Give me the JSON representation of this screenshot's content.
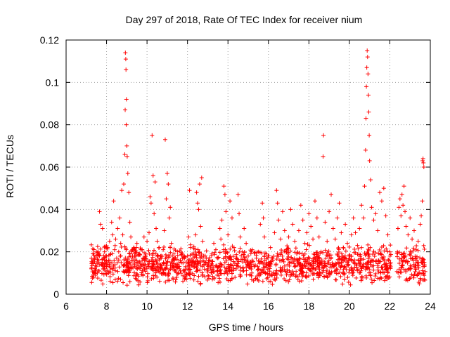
{
  "chart_data": {
    "type": "scatter",
    "title": "Day 297 of 2018, Rate Of TEC Index for receiver nium",
    "xlabel": "GPS time / hours",
    "ylabel": "ROTI / TECUs",
    "xlim": [
      6,
      24
    ],
    "ylim": [
      0,
      0.12
    ],
    "xticks": [
      6,
      8,
      10,
      12,
      14,
      16,
      18,
      20,
      22,
      24
    ],
    "xtick_labels": [
      "6",
      "8",
      "10",
      "12",
      "14",
      "16",
      "18",
      "20",
      "22",
      "24"
    ],
    "yticks": [
      0,
      0.02,
      0.04,
      0.06,
      0.08,
      0.1,
      0.12
    ],
    "ytick_labels": [
      "0",
      "0.02",
      "0.04",
      "0.06",
      "0.08",
      "0.1",
      "0.12"
    ],
    "grid": true,
    "marker": "+",
    "color": "#ff0000",
    "series": [
      {
        "name": "ROTI",
        "points": [
          [
            7.25,
            0.012
          ],
          [
            7.3,
            0.015
          ],
          [
            7.35,
            0.009
          ],
          [
            7.4,
            0.017
          ],
          [
            7.45,
            0.011
          ],
          [
            7.5,
            0.013
          ],
          [
            7.55,
            0.01
          ],
          [
            7.6,
            0.016
          ],
          [
            7.65,
            0.039
          ],
          [
            7.7,
            0.033
          ],
          [
            7.75,
            0.014
          ],
          [
            7.8,
            0.031
          ],
          [
            7.85,
            0.012
          ],
          [
            7.9,
            0.02
          ],
          [
            7.95,
            0.018
          ],
          [
            8.0,
            0.013
          ],
          [
            8.05,
            0.022
          ],
          [
            8.1,
            0.016
          ],
          [
            8.15,
            0.025
          ],
          [
            8.2,
            0.019
          ],
          [
            8.25,
            0.034
          ],
          [
            8.3,
            0.028
          ],
          [
            8.35,
            0.044
          ],
          [
            8.4,
            0.021
          ],
          [
            8.45,
            0.026
          ],
          [
            8.5,
            0.017
          ],
          [
            8.55,
            0.031
          ],
          [
            8.6,
            0.02
          ],
          [
            8.65,
            0.036
          ],
          [
            8.7,
            0.024
          ],
          [
            8.75,
            0.049
          ],
          [
            8.8,
            0.028
          ],
          [
            8.85,
            0.052
          ],
          [
            8.9,
            0.066
          ],
          [
            8.92,
            0.087
          ],
          [
            8.93,
            0.114
          ],
          [
            8.95,
            0.111
          ],
          [
            8.96,
            0.106
          ],
          [
            8.97,
            0.08
          ],
          [
            8.98,
            0.092
          ],
          [
            9.0,
            0.07
          ],
          [
            9.02,
            0.065
          ],
          [
            9.05,
            0.057
          ],
          [
            9.1,
            0.048
          ],
          [
            9.15,
            0.034
          ],
          [
            9.2,
            0.027
          ],
          [
            9.25,
            0.02
          ],
          [
            9.3,
            0.016
          ],
          [
            9.35,
            0.022
          ],
          [
            9.4,
            0.013
          ],
          [
            9.45,
            0.018
          ],
          [
            9.5,
            0.024
          ],
          [
            9.55,
            0.015
          ],
          [
            9.6,
            0.019
          ],
          [
            9.65,
            0.012
          ],
          [
            9.7,
            0.021
          ],
          [
            9.75,
            0.014
          ],
          [
            9.8,
            0.017
          ],
          [
            9.85,
            0.027
          ],
          [
            9.9,
            0.016
          ],
          [
            9.95,
            0.019
          ],
          [
            10.0,
            0.025
          ],
          [
            10.05,
            0.014
          ],
          [
            10.1,
            0.029
          ],
          [
            10.15,
            0.046
          ],
          [
            10.2,
            0.043
          ],
          [
            10.25,
            0.075
          ],
          [
            10.3,
            0.056
          ],
          [
            10.35,
            0.038
          ],
          [
            10.4,
            0.053
          ],
          [
            10.45,
            0.031
          ],
          [
            10.5,
            0.025
          ],
          [
            10.55,
            0.018
          ],
          [
            10.6,
            0.022
          ],
          [
            10.65,
            0.014
          ],
          [
            10.7,
            0.017
          ],
          [
            10.8,
            0.021
          ],
          [
            10.85,
            0.03
          ],
          [
            10.9,
            0.073
          ],
          [
            10.95,
            0.045
          ],
          [
            11.0,
            0.057
          ],
          [
            11.05,
            0.052
          ],
          [
            11.1,
            0.036
          ],
          [
            11.15,
            0.041
          ],
          [
            11.2,
            0.024
          ],
          [
            11.25,
            0.018
          ],
          [
            11.3,
            0.013
          ],
          [
            11.35,
            0.016
          ],
          [
            11.4,
            0.011
          ],
          [
            11.5,
            0.014
          ],
          [
            11.55,
            0.01
          ],
          [
            11.6,
            0.012
          ],
          [
            11.7,
            0.015
          ],
          [
            11.8,
            0.011
          ],
          [
            11.9,
            0.013
          ],
          [
            12.0,
            0.018
          ],
          [
            12.05,
            0.027
          ],
          [
            12.1,
            0.049
          ],
          [
            12.15,
            0.022
          ],
          [
            12.2,
            0.014
          ],
          [
            12.3,
            0.019
          ],
          [
            12.4,
            0.028
          ],
          [
            12.45,
            0.048
          ],
          [
            12.5,
            0.043
          ],
          [
            12.55,
            0.04
          ],
          [
            12.6,
            0.052
          ],
          [
            12.65,
            0.032
          ],
          [
            12.7,
            0.055
          ],
          [
            12.75,
            0.025
          ],
          [
            12.8,
            0.018
          ],
          [
            12.9,
            0.015
          ],
          [
            13.0,
            0.012
          ],
          [
            13.1,
            0.016
          ],
          [
            13.2,
            0.019
          ],
          [
            13.3,
            0.024
          ],
          [
            13.4,
            0.021
          ],
          [
            13.5,
            0.017
          ],
          [
            13.6,
            0.031
          ],
          [
            13.65,
            0.026
          ],
          [
            13.7,
            0.035
          ],
          [
            13.8,
            0.051
          ],
          [
            13.85,
            0.047
          ],
          [
            13.9,
            0.039
          ],
          [
            14.0,
            0.028
          ],
          [
            14.1,
            0.044
          ],
          [
            14.2,
            0.036
          ],
          [
            14.3,
            0.022
          ],
          [
            14.4,
            0.017
          ],
          [
            14.5,
            0.047
          ],
          [
            14.55,
            0.038
          ],
          [
            14.6,
            0.027
          ],
          [
            14.7,
            0.02
          ],
          [
            14.8,
            0.031
          ],
          [
            14.9,
            0.024
          ],
          [
            15.0,
            0.018
          ],
          [
            15.1,
            0.015
          ],
          [
            15.2,
            0.021
          ],
          [
            15.3,
            0.013
          ],
          [
            15.4,
            0.017
          ],
          [
            15.5,
            0.02
          ],
          [
            15.6,
            0.033
          ],
          [
            15.7,
            0.043
          ],
          [
            15.75,
            0.036
          ],
          [
            15.8,
            0.027
          ],
          [
            15.9,
            0.019
          ],
          [
            16.0,
            0.015
          ],
          [
            16.1,
            0.022
          ],
          [
            16.2,
            0.017
          ],
          [
            16.3,
            0.029
          ],
          [
            16.4,
            0.049
          ],
          [
            16.45,
            0.043
          ],
          [
            16.5,
            0.035
          ],
          [
            16.6,
            0.026
          ],
          [
            16.7,
            0.039
          ],
          [
            16.8,
            0.03
          ],
          [
            16.9,
            0.021
          ],
          [
            17.0,
            0.027
          ],
          [
            17.1,
            0.04
          ],
          [
            17.2,
            0.033
          ],
          [
            17.3,
            0.025
          ],
          [
            17.4,
            0.019
          ],
          [
            17.5,
            0.03
          ],
          [
            17.6,
            0.042
          ],
          [
            17.7,
            0.035
          ],
          [
            17.8,
            0.024
          ],
          [
            17.9,
            0.029
          ],
          [
            18.0,
            0.038
          ],
          [
            18.1,
            0.032
          ],
          [
            18.2,
            0.026
          ],
          [
            18.3,
            0.044
          ],
          [
            18.4,
            0.036
          ],
          [
            18.5,
            0.027
          ],
          [
            18.6,
            0.02
          ],
          [
            18.7,
            0.065
          ],
          [
            18.72,
            0.075
          ],
          [
            18.8,
            0.034
          ],
          [
            18.9,
            0.025
          ],
          [
            19.0,
            0.039
          ],
          [
            19.1,
            0.047
          ],
          [
            19.2,
            0.031
          ],
          [
            19.3,
            0.026
          ],
          [
            19.4,
            0.036
          ],
          [
            19.5,
            0.043
          ],
          [
            19.6,
            0.029
          ],
          [
            19.7,
            0.022
          ],
          [
            19.8,
            0.033
          ],
          [
            19.9,
            0.024
          ],
          [
            20.0,
            0.018
          ],
          [
            20.1,
            0.028
          ],
          [
            20.2,
            0.036
          ],
          [
            20.3,
            0.029
          ],
          [
            20.4,
            0.023
          ],
          [
            20.5,
            0.031
          ],
          [
            20.6,
            0.042
          ],
          [
            20.7,
            0.036
          ],
          [
            20.75,
            0.051
          ],
          [
            20.8,
            0.068
          ],
          [
            20.82,
            0.083
          ],
          [
            20.84,
            0.098
          ],
          [
            20.86,
            0.107
          ],
          [
            20.88,
            0.115
          ],
          [
            20.9,
            0.112
          ],
          [
            20.92,
            0.104
          ],
          [
            20.94,
            0.094
          ],
          [
            20.96,
            0.086
          ],
          [
            20.98,
            0.075
          ],
          [
            21.0,
            0.063
          ],
          [
            21.05,
            0.054
          ],
          [
            21.1,
            0.041
          ],
          [
            21.2,
            0.035
          ],
          [
            21.3,
            0.038
          ],
          [
            21.4,
            0.03
          ],
          [
            21.5,
            0.048
          ],
          [
            21.6,
            0.044
          ],
          [
            21.7,
            0.05
          ],
          [
            21.8,
            0.037
          ],
          [
            21.9,
            0.028
          ],
          [
            22.0,
            0.02
          ],
          [
            22.4,
            0.031
          ],
          [
            22.45,
            0.041
          ],
          [
            22.5,
            0.045
          ],
          [
            22.55,
            0.037
          ],
          [
            22.6,
            0.047
          ],
          [
            22.65,
            0.042
          ],
          [
            22.7,
            0.051
          ],
          [
            22.75,
            0.039
          ],
          [
            22.8,
            0.032
          ],
          [
            22.9,
            0.028
          ],
          [
            23.0,
            0.036
          ],
          [
            23.1,
            0.026
          ],
          [
            23.2,
            0.03
          ],
          [
            23.3,
            0.021
          ],
          [
            23.4,
            0.025
          ],
          [
            23.5,
            0.033
          ],
          [
            23.55,
            0.037
          ],
          [
            23.6,
            0.044
          ],
          [
            23.62,
            0.063
          ],
          [
            23.64,
            0.064
          ],
          [
            23.66,
            0.062
          ],
          [
            23.68,
            0.06
          ]
        ]
      }
    ],
    "dense_band": {
      "x_segments": [
        [
          7.2,
          22.05
        ],
        [
          22.35,
          23.75
        ]
      ],
      "y_min": 0.004,
      "y_max": 0.024,
      "count": 1400
    }
  }
}
